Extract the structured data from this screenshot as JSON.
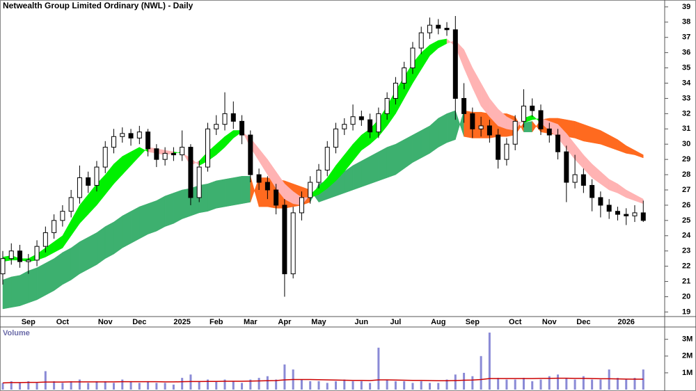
{
  "chart_data": [
    {
      "type": "candlestick",
      "title": "Netwealth Group Limited Ordinary (NWL) - Daily",
      "categories": [
        null,
        null,
        null,
        "Sep",
        null,
        null,
        null,
        "Oct",
        null,
        null,
        null,
        null,
        "Nov",
        null,
        null,
        null,
        "Dec",
        null,
        null,
        null,
        null,
        "2025",
        null,
        null,
        null,
        "Feb",
        null,
        null,
        null,
        "Mar",
        null,
        null,
        null,
        "Apr",
        null,
        null,
        null,
        "May",
        null,
        null,
        null,
        null,
        "Jun",
        null,
        null,
        null,
        "Jul",
        null,
        null,
        null,
        null,
        "Aug",
        null,
        null,
        null,
        "Sep",
        null,
        null,
        null,
        null,
        "Oct",
        null,
        null,
        null,
        "Nov",
        null,
        null,
        null,
        "Dec",
        null,
        null,
        null,
        null,
        "2026",
        null,
        null
      ],
      "open": [
        21.5,
        22.5,
        23.0,
        22.3,
        22.4,
        23.3,
        24.2,
        25.0,
        25.6,
        26.5,
        27.8,
        27.3,
        28.5,
        29.8,
        30.5,
        30.7,
        30.4,
        30.8,
        29.7,
        29.0,
        29.4,
        29.3,
        29.8,
        26.5,
        28.5,
        31.0,
        31.3,
        32.0,
        31.5,
        30.6,
        28.0,
        27.5,
        27.0,
        26.0,
        21.5,
        25.5,
        26.5,
        27.5,
        28.3,
        29.8,
        31.0,
        31.3,
        31.8,
        31.6,
        30.8,
        32.0,
        33.0,
        34.0,
        35.0,
        36.3,
        37.3,
        37.8,
        37.6,
        37.5,
        33.0,
        32.0,
        31.0,
        31.2,
        30.6,
        29.0,
        30.0,
        31.5,
        32.5,
        32.2,
        31.0,
        30.6,
        29.5,
        27.5,
        28.0,
        27.3,
        26.5,
        26.0,
        25.6,
        25.4,
        25.3,
        25.5
      ],
      "high": [
        23.0,
        23.5,
        23.4,
        22.8,
        23.7,
        24.6,
        25.4,
        26.0,
        27.0,
        28.6,
        28.2,
        28.9,
        30.2,
        31.0,
        31.1,
        31.0,
        31.2,
        31.0,
        30.0,
        29.8,
        29.8,
        30.9,
        30.0,
        28.9,
        31.4,
        31.9,
        33.4,
        32.8,
        31.9,
        30.9,
        28.4,
        27.9,
        27.4,
        26.4,
        25.9,
        26.9,
        27.9,
        28.7,
        30.2,
        31.4,
        31.7,
        32.6,
        32.2,
        32.0,
        32.4,
        33.4,
        34.4,
        35.4,
        36.7,
        37.7,
        38.3,
        38.2,
        38.0,
        38.4,
        34.0,
        32.4,
        31.8,
        31.6,
        31.0,
        30.4,
        31.9,
        33.6,
        33.0,
        32.6,
        31.4,
        31.0,
        29.9,
        29.3,
        28.4,
        27.7,
        26.9,
        26.4,
        25.9,
        25.8,
        26.0,
        26.3
      ],
      "low": [
        20.8,
        22.1,
        21.9,
        21.5,
        22.0,
        22.9,
        23.8,
        24.6,
        25.2,
        26.1,
        26.8,
        26.9,
        28.1,
        29.4,
        30.1,
        29.9,
        30.0,
        29.2,
        28.5,
        28.6,
        28.9,
        28.9,
        26.0,
        26.2,
        28.2,
        30.6,
        30.9,
        31.0,
        30.0,
        27.5,
        27.0,
        26.4,
        25.4,
        20.0,
        21.2,
        25.0,
        26.1,
        27.1,
        27.9,
        29.4,
        30.6,
        30.9,
        31.2,
        30.4,
        30.4,
        31.6,
        32.6,
        33.6,
        34.6,
        35.9,
        36.9,
        37.2,
        37.1,
        31.6,
        31.4,
        30.4,
        30.5,
        30.1,
        28.4,
        28.6,
        29.6,
        31.1,
        31.8,
        30.6,
        30.1,
        29.0,
        26.2,
        27.1,
        26.8,
        25.6,
        25.2,
        25.1,
        25.0,
        24.7,
        24.9,
        24.9
      ],
      "close": [
        22.5,
        23.0,
        22.3,
        22.4,
        23.3,
        24.2,
        25.0,
        25.6,
        26.5,
        27.8,
        27.3,
        28.5,
        29.8,
        30.5,
        30.7,
        30.4,
        30.8,
        29.7,
        29.0,
        29.4,
        29.3,
        29.8,
        26.5,
        28.5,
        31.0,
        31.3,
        32.0,
        31.5,
        30.6,
        28.0,
        27.5,
        27.0,
        26.0,
        21.5,
        25.5,
        26.5,
        27.5,
        28.3,
        29.8,
        31.0,
        31.3,
        31.8,
        31.6,
        30.8,
        32.0,
        33.0,
        34.0,
        35.0,
        36.3,
        37.3,
        37.8,
        37.6,
        37.5,
        33.0,
        32.0,
        31.0,
        31.2,
        30.6,
        29.0,
        30.0,
        31.5,
        32.5,
        32.2,
        31.0,
        30.6,
        29.5,
        27.5,
        28.0,
        27.3,
        26.5,
        26.0,
        25.6,
        25.4,
        25.3,
        25.5,
        25.0
      ],
      "color": "#000000",
      "bands": [
        {
          "up_color": "#3db06f",
          "down_color": "#ff6a1f",
          "lead": [
            21.1,
            21.3,
            21.4,
            21.7,
            21.9,
            22.2,
            22.5,
            22.9,
            23.2,
            23.6,
            23.9,
            24.2,
            24.6,
            24.9,
            25.3,
            25.6,
            25.9,
            26.1,
            26.3,
            26.6,
            26.8,
            27.0,
            27.1,
            27.3,
            27.4,
            27.6,
            27.7,
            27.8,
            27.9,
            27.9,
            25.9,
            25.9,
            25.8,
            25.8,
            25.9,
            26.0,
            26.2,
            27.4,
            27.6,
            27.9,
            28.2,
            28.6,
            28.9,
            29.2,
            29.5,
            29.8,
            30.0,
            30.3,
            30.6,
            30.9,
            31.2,
            31.7,
            32.0,
            32.2,
            30.5,
            30.4,
            30.4,
            30.4,
            30.5,
            30.5,
            30.6,
            31.4,
            31.5,
            30.8,
            30.7,
            30.6,
            30.5,
            30.4,
            30.2,
            30.1,
            30.0,
            29.8,
            29.6,
            29.4,
            29.3,
            29.1
          ],
          "lag": [
            19.2,
            19.3,
            19.4,
            19.6,
            19.8,
            20.1,
            20.4,
            20.8,
            21.1,
            21.5,
            21.8,
            22.1,
            22.5,
            22.8,
            23.2,
            23.5,
            23.8,
            24.1,
            24.3,
            24.6,
            24.8,
            25.1,
            25.3,
            25.5,
            25.6,
            25.8,
            25.9,
            26.0,
            26.1,
            26.2,
            27.8,
            27.8,
            27.7,
            27.6,
            27.4,
            27.2,
            27.0,
            26.2,
            26.4,
            26.6,
            26.8,
            27.0,
            27.2,
            27.4,
            27.6,
            27.8,
            28.0,
            28.4,
            28.8,
            29.1,
            29.4,
            29.8,
            30.1,
            30.3,
            32.2,
            32.1,
            32.1,
            32.0,
            32.0,
            32.0,
            31.8,
            30.8,
            30.8,
            31.6,
            31.7,
            31.7,
            31.6,
            31.5,
            31.3,
            31.1,
            30.9,
            30.6,
            30.3,
            29.9,
            29.6,
            29.3
          ]
        },
        {
          "up_color": "#00f000",
          "down_color": "#ffb3b3",
          "lead": [
            22.6,
            22.7,
            22.5,
            22.5,
            22.8,
            23.2,
            23.6,
            24.0,
            25.0,
            26.0,
            26.7,
            27.4,
            28.0,
            28.7,
            29.2,
            29.5,
            29.8,
            29.5,
            29.4,
            29.3,
            29.4,
            29.5,
            28.6,
            28.9,
            29.5,
            30.0,
            30.5,
            30.9,
            30.9,
            29.8,
            28.9,
            28.0,
            27.1,
            26.4,
            26.1,
            26.0,
            26.7,
            27.2,
            27.8,
            28.6,
            29.3,
            30.0,
            30.6,
            31.0,
            31.6,
            32.5,
            33.5,
            34.4,
            35.3,
            36.0,
            36.5,
            36.8,
            36.9,
            36.4,
            35.0,
            33.7,
            32.5,
            31.8,
            31.2,
            31.0,
            30.9,
            31.7,
            31.9,
            31.4,
            30.9,
            30.4,
            29.7,
            29.0,
            28.4,
            27.8,
            27.4,
            27.0,
            26.8,
            26.5,
            26.3,
            26.1
          ],
          "lag": [
            22.3,
            22.4,
            22.4,
            22.3,
            22.4,
            22.6,
            22.9,
            23.2,
            24.0,
            24.8,
            25.4,
            26.0,
            26.7,
            27.4,
            28.0,
            28.6,
            29.2,
            29.8,
            29.7,
            29.6,
            29.5,
            29.4,
            29.1,
            28.6,
            28.9,
            29.3,
            29.8,
            30.4,
            30.8,
            30.4,
            29.7,
            29.0,
            28.2,
            27.4,
            26.9,
            26.5,
            26.5,
            26.7,
            27.1,
            27.6,
            28.2,
            28.9,
            29.6,
            30.0,
            30.5,
            31.2,
            32.0,
            33.0,
            34.0,
            34.9,
            35.8,
            36.3,
            36.6,
            36.8,
            36.2,
            35.0,
            34.0,
            33.0,
            32.3,
            31.8,
            31.5,
            31.4,
            31.6,
            31.7,
            31.5,
            31.3,
            30.7,
            30.0,
            29.3,
            28.7,
            28.2,
            27.7,
            27.4,
            27.0,
            26.7,
            26.4
          ]
        }
      ],
      "ylim": [
        18.7,
        39.45
      ],
      "yticks": [
        19,
        20,
        21,
        22,
        23,
        24,
        25,
        26,
        27,
        28,
        29,
        30,
        31,
        32,
        33,
        34,
        35,
        36,
        37,
        38,
        39
      ],
      "grid": false
    },
    {
      "type": "bar",
      "title": "Volume",
      "color": "#8a8ad6",
      "values": [
        0.4,
        0.5,
        0.4,
        0.5,
        0.4,
        1.1,
        0.5,
        0.4,
        0.5,
        0.6,
        0.4,
        0.5,
        0.5,
        0.4,
        0.6,
        0.5,
        0.4,
        0.5,
        0.4,
        0.4,
        0.3,
        0.7,
        0.9,
        0.5,
        0.6,
        0.5,
        0.6,
        0.5,
        0.4,
        0.6,
        0.7,
        0.8,
        0.6,
        1.5,
        1.2,
        0.6,
        0.5,
        0.5,
        0.4,
        0.5,
        0.6,
        0.5,
        0.5,
        0.4,
        2.5,
        0.6,
        0.5,
        0.5,
        0.4,
        0.5,
        0.4,
        0.4,
        0.6,
        0.9,
        1.0,
        0.8,
        2.0,
        3.4,
        0.7,
        0.6,
        0.6,
        0.7,
        0.5,
        0.6,
        0.8,
        0.9,
        0.7,
        0.6,
        0.8,
        0.6,
        0.6,
        1.2,
        0.7,
        0.6,
        0.7,
        1.2
      ],
      "average": {
        "color": "#cc0000",
        "values": [
          0.4,
          0.42,
          0.42,
          0.43,
          0.43,
          0.45,
          0.45,
          0.45,
          0.46,
          0.46,
          0.46,
          0.46,
          0.46,
          0.46,
          0.47,
          0.47,
          0.47,
          0.47,
          0.47,
          0.46,
          0.46,
          0.47,
          0.48,
          0.48,
          0.49,
          0.49,
          0.5,
          0.5,
          0.5,
          0.51,
          0.52,
          0.53,
          0.54,
          0.58,
          0.6,
          0.6,
          0.6,
          0.59,
          0.58,
          0.57,
          0.56,
          0.55,
          0.55,
          0.54,
          0.58,
          0.58,
          0.57,
          0.56,
          0.55,
          0.55,
          0.54,
          0.53,
          0.53,
          0.54,
          0.56,
          0.57,
          0.6,
          0.66,
          0.66,
          0.66,
          0.66,
          0.66,
          0.66,
          0.67,
          0.67,
          0.68,
          0.68,
          0.67,
          0.67,
          0.66,
          0.65,
          0.65,
          0.64,
          0.63,
          0.62,
          0.62
        ]
      },
      "ylim": [
        0,
        3.9
      ],
      "yticks": [
        {
          "value": 1,
          "label": "1M"
        },
        {
          "value": 2,
          "label": "2M"
        },
        {
          "value": 3,
          "label": "3M"
        }
      ]
    }
  ]
}
